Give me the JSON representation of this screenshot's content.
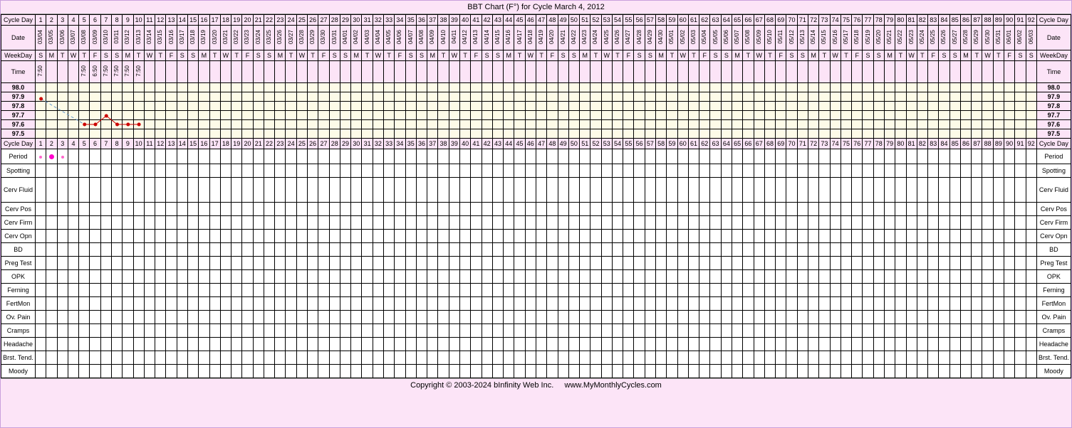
{
  "title": "BBT Chart (F°) for Cycle March 4, 2012",
  "num_days": 92,
  "label_width": 48,
  "row_labels": {
    "cycle_day": "Cycle Day",
    "date": "Date",
    "weekday": "WeekDay",
    "time": "Time",
    "period": "Period",
    "spotting": "Spotting",
    "cerv_fluid": "Cerv Fluid",
    "cerv_pos": "Cerv Pos",
    "cerv_firm": "Cerv Firm",
    "cerv_opn": "Cerv Opn",
    "bd": "BD",
    "preg_test": "Preg Test",
    "opk": "OPK",
    "ferning": "Ferning",
    "fertmon": "FertMon",
    "ov_pain": "Ov. Pain",
    "cramps": "Cramps",
    "headache": "Headache",
    "brst_tend": "Brst. Tend.",
    "moody": "Moody"
  },
  "dates_start": {
    "month": 3,
    "day": 4,
    "year": 2012
  },
  "weekdays_cycle": [
    "S",
    "M",
    "T",
    "W",
    "T",
    "F",
    "S"
  ],
  "times": {
    "1": "7:50",
    "5": "7:50",
    "6": "6:50",
    "7": "7:50",
    "8": "7:50",
    "9": "7:50",
    "10": "7:50"
  },
  "temp_scale": {
    "min": 97.5,
    "max": 98.0,
    "step": 0.1,
    "labels": [
      "98.0",
      "97.9",
      "97.8",
      "97.7",
      "97.6",
      "97.5"
    ]
  },
  "temps": {
    "1": 97.9,
    "5": 97.6,
    "6": 97.6,
    "7": 97.7,
    "8": 97.6,
    "9": 97.6,
    "10": 97.6
  },
  "temp_style": {
    "line_color": "#cc0000",
    "line_dash": "4,3",
    "dot_color": "#cc0000",
    "dot_r": 2.5,
    "gap_line_color": "#6699cc"
  },
  "period": {
    "1": {
      "size": 4,
      "color": "#ff66cc"
    },
    "2": {
      "size": 7,
      "color": "#ff00cc"
    },
    "3": {
      "size": 4,
      "color": "#ff66cc"
    }
  },
  "colors": {
    "bg": "#fce4f7",
    "border": "#c9a0dc",
    "grid": "#000000",
    "temp_bg": "#fdfbe8"
  },
  "footer": {
    "copyright": "Copyright © 2003-2024 bInfinity Web Inc.",
    "url": "www.MyMonthlyCycles.com"
  }
}
